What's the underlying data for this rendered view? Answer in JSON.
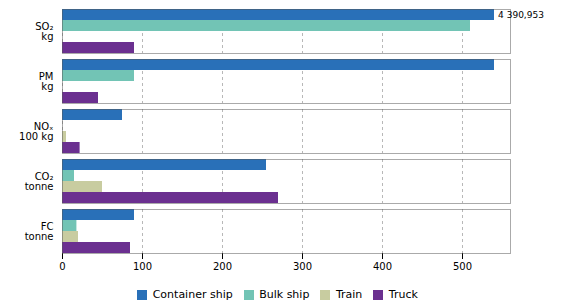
{
  "chart_data": {
    "type": "bar",
    "orientation": "horizontal",
    "categories": [
      "SO₂\nkg",
      "PM\nkg",
      "NOₓ\n100 kg",
      "CO₂\ntonne",
      "FC\ntonne"
    ],
    "series": [
      {
        "name": "Container ship",
        "color": "#2970B8",
        "values": [
          540,
          540,
          75,
          255,
          90
        ]
      },
      {
        "name": "Bulk ship",
        "color": "#72C4B5",
        "values": [
          510,
          90,
          0,
          15,
          18
        ]
      },
      {
        "name": "Train",
        "color": "#C8CCA0",
        "values": [
          0,
          0,
          5,
          50,
          20
        ]
      },
      {
        "name": "Truck",
        "color": "#6B3090",
        "values": [
          90,
          45,
          22,
          270,
          85
        ]
      }
    ],
    "annotations": [
      {
        "text": "4 390,953",
        "x": 542,
        "category": "SO₂\nkg",
        "series": "Container ship"
      }
    ],
    "xlim": [
      0,
      560
    ],
    "xticks": [
      0,
      100,
      200,
      300,
      400,
      500
    ],
    "grid": true,
    "legend": "bottom"
  }
}
